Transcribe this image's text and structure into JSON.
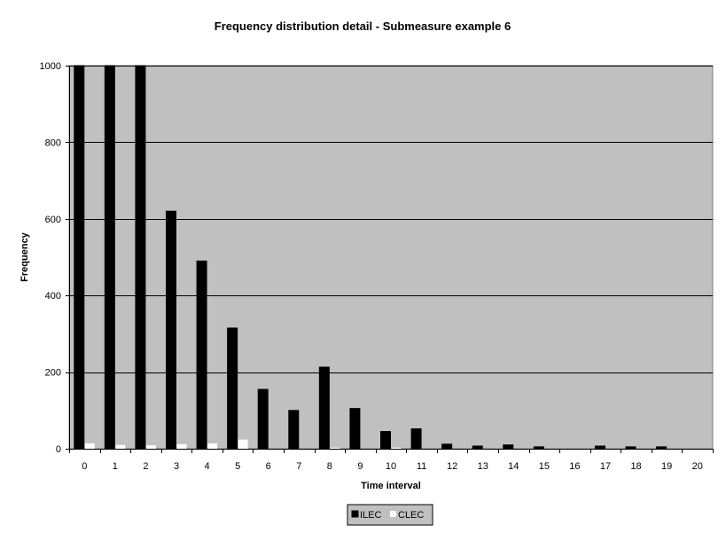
{
  "chart_data": {
    "type": "bar",
    "title": "Frequency distribution detail - Submeasure example 6",
    "xlabel": "Time interval",
    "ylabel": "Frequency",
    "ylim": [
      0,
      1000
    ],
    "yticks": [
      0,
      200,
      400,
      600,
      800,
      1000
    ],
    "grid": true,
    "legend_position": "bottom",
    "categories": [
      "0",
      "1",
      "2",
      "3",
      "4",
      "5",
      "6",
      "7",
      "8",
      "9",
      "10",
      "11",
      "12",
      "13",
      "14",
      "15",
      "16",
      "17",
      "18",
      "19",
      "20"
    ],
    "series": [
      {
        "name": "ILEC",
        "color": "#000000",
        "values": [
          1000,
          1000,
          1000,
          620,
          490,
          315,
          155,
          100,
          213,
          105,
          45,
          52,
          12,
          7,
          10,
          5,
          0,
          7,
          5,
          5,
          0
        ]
      },
      {
        "name": "CLEC",
        "color": "#ffffff",
        "values": [
          14,
          10,
          9,
          12,
          14,
          24,
          0,
          0,
          3,
          0,
          3,
          0,
          0,
          0,
          0,
          0,
          0,
          0,
          0,
          0,
          0
        ]
      }
    ],
    "plot_background": "#c0c0c0",
    "legend_background": "#c0c0c0"
  }
}
